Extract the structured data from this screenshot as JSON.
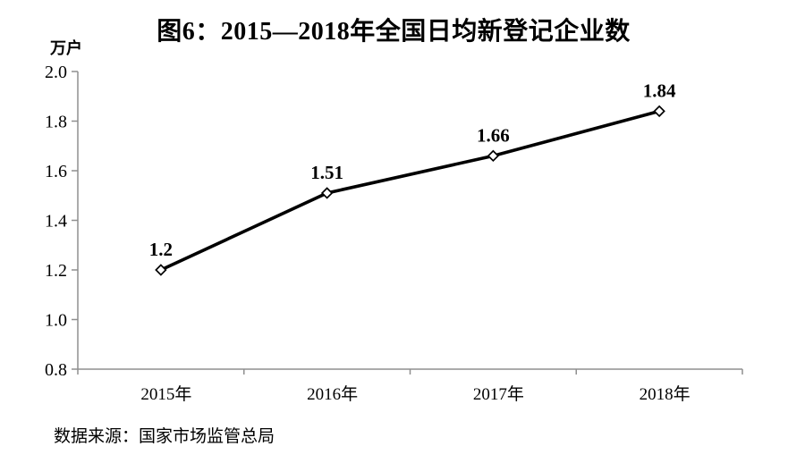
{
  "figure": {
    "title": "图6：2015—2018年全国日均新登记企业数",
    "unit_label": "万户",
    "source": "数据来源：国家市场监管总局"
  },
  "colors": {
    "line": "#000000",
    "axis": "#8f8f8f",
    "marker_fill": "#ffffff",
    "marker_stroke": "#000000",
    "text": "#000000",
    "background": "#ffffff"
  },
  "chart_data": {
    "type": "line",
    "title": "图6：2015—2018年全国日均新登记企业数",
    "categories": [
      "2015年",
      "2016年",
      "2017年",
      "2018年"
    ],
    "values": [
      1.2,
      1.51,
      1.66,
      1.84
    ],
    "point_labels": [
      "1.2",
      "1.51",
      "1.66",
      "1.84"
    ],
    "ylabel": "万户",
    "xlabel": "",
    "ylim": [
      0.8,
      2.0
    ],
    "y_tick_step": 0.2,
    "y_ticks": [
      "2.0",
      "1.8",
      "1.6",
      "1.4",
      "1.2",
      "1.0",
      "0.8"
    ],
    "grid": false,
    "legend": false,
    "marker": "diamond-open",
    "source": "数据来源：国家市场监管总局"
  }
}
